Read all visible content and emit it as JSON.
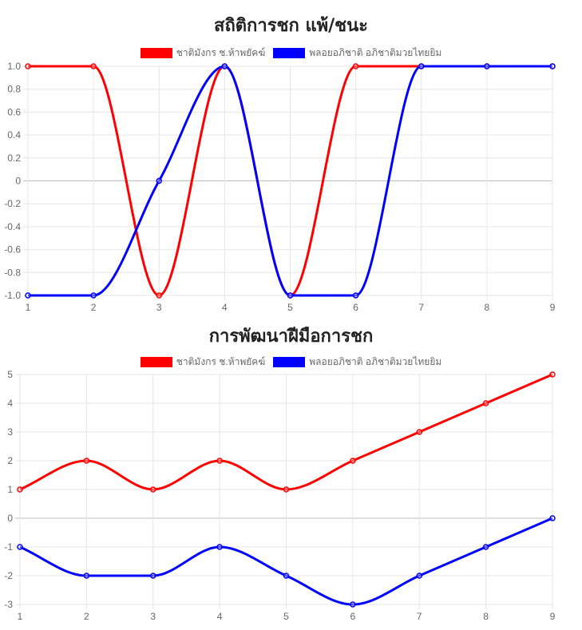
{
  "colors": {
    "series_a": "#ff0000",
    "series_b": "#0000ff",
    "grid": "#e6e6e6",
    "zero_line": "#bdbdbd"
  },
  "chart_data": [
    {
      "type": "line",
      "title": "สถิติการชก แพ้/ชนะ",
      "x": [
        1,
        2,
        3,
        4,
        5,
        6,
        7,
        8,
        9
      ],
      "series": [
        {
          "name": "ชาติมังกร ช.ห้าพยัคฆ์",
          "color": "#ff0000",
          "values": [
            1,
            1,
            -1,
            1,
            -1,
            1,
            1,
            1,
            1
          ]
        },
        {
          "name": "พลอยอภิชาติ อภิชาติมวยไทยยิม",
          "color": "#0000ff",
          "values": [
            -1,
            -1,
            0,
            1,
            -1,
            -1,
            1,
            1,
            1
          ]
        }
      ],
      "ylim": [
        -1,
        1
      ],
      "yticks": [
        "1.0",
        "0.8",
        "0.6",
        "0.4",
        "0.2",
        "0",
        "-0.2",
        "-0.4",
        "-0.6",
        "-0.8",
        "-1.0"
      ],
      "xticks": [
        "1",
        "2",
        "3",
        "4",
        "5",
        "6",
        "7",
        "8",
        "9"
      ],
      "xlabel": "",
      "ylabel": "",
      "grid": true,
      "legend": "top-center"
    },
    {
      "type": "line",
      "title": "การพัฒนาฝีมือการชก",
      "x": [
        1,
        2,
        3,
        4,
        5,
        6,
        7,
        8,
        9
      ],
      "series": [
        {
          "name": "ชาติมังกร ช.ห้าพยัคฆ์",
          "color": "#ff0000",
          "values": [
            1,
            2,
            1,
            2,
            1,
            2,
            3,
            4,
            5
          ]
        },
        {
          "name": "พลอยอภิชาติ อภิชาติมวยไทยยิม",
          "color": "#0000ff",
          "values": [
            -1,
            -2,
            -2,
            -1,
            -2,
            -3,
            -2,
            -1,
            0
          ]
        }
      ],
      "ylim": [
        -3,
        5
      ],
      "yticks": [
        "5",
        "4",
        "3",
        "2",
        "1",
        "0",
        "-1",
        "-2",
        "-3"
      ],
      "xticks": [
        "1",
        "2",
        "3",
        "4",
        "5",
        "6",
        "7",
        "8",
        "9"
      ],
      "xlabel": "",
      "ylabel": "",
      "grid": true,
      "legend": "top-center"
    }
  ]
}
